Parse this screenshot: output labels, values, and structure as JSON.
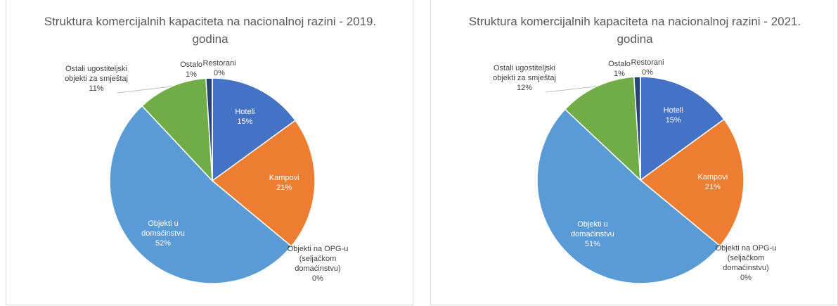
{
  "chart_data": [
    {
      "type": "pie",
      "title": "Struktura komercijalnih kapaciteta na nacionalnoj razini - 2019. godina",
      "categories": [
        "Hoteli",
        "Kampovi",
        "Objekti na OPG-u (seljačkom domaćinstvu)",
        "Objekti u domaćinstvu",
        "Ostali ugostiteljski objekti za smještaj",
        "Ostalo",
        "Restorani"
      ],
      "values": [
        15,
        21,
        0,
        52,
        11,
        1,
        0
      ],
      "value_labels": [
        "15%",
        "21%",
        "0%",
        "52%",
        "11%",
        "1%",
        "0%"
      ],
      "colors": [
        "#4472c4",
        "#ed7d31",
        "#a5a5a5",
        "#5b9bd5",
        "#70ad47",
        "#264478",
        "#9e480e"
      ]
    },
    {
      "type": "pie",
      "title": "Struktura komercijalnih kapaciteta na nacionalnoj razini - 2021. godina",
      "categories": [
        "Hoteli",
        "Kampovi",
        "Objekti na OPG-u (seljačkom domaćinstvu)",
        "Objekti u domaćinstvu",
        "Ostali ugostiteljski objekti za smještaj",
        "Ostalo",
        "Restorani"
      ],
      "values": [
        15,
        21,
        0,
        51,
        12,
        1,
        0
      ],
      "value_labels": [
        "15%",
        "21%",
        "0%",
        "51%",
        "12%",
        "1%",
        "0%"
      ],
      "colors": [
        "#4472c4",
        "#ed7d31",
        "#a5a5a5",
        "#5b9bd5",
        "#70ad47",
        "#264478",
        "#9e480e"
      ]
    }
  ]
}
